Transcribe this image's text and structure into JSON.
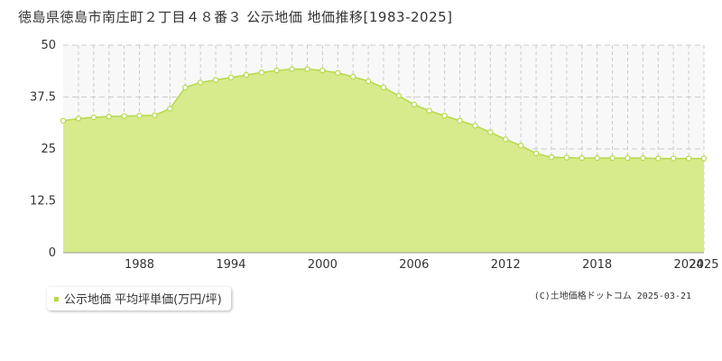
{
  "title": "徳島県徳島市南庄町２丁目４８番３ 公示地価 地価推移[1983-2025]",
  "legend": {
    "label": "公示地価 平均坪単価(万円/坪)"
  },
  "credit": "(C)土地価格ドットコム 2025-03-21",
  "colors": {
    "area": "#d7eb8c",
    "line": "#b5d94a",
    "grid": "#cccccc",
    "plot_bg": "#f8f8f8",
    "marker_fill": "#ffffff"
  },
  "chart_data": {
    "type": "area",
    "x": [
      1983,
      1984,
      1985,
      1986,
      1987,
      1988,
      1989,
      1990,
      1991,
      1992,
      1993,
      1994,
      1995,
      1996,
      1997,
      1998,
      1999,
      2000,
      2001,
      2002,
      2003,
      2004,
      2005,
      2006,
      2007,
      2008,
      2009,
      2010,
      2011,
      2012,
      2013,
      2014,
      2015,
      2016,
      2017,
      2018,
      2019,
      2020,
      2021,
      2022,
      2023,
      2024,
      2025
    ],
    "series": [
      {
        "values": [
          31.8,
          32.3,
          32.6,
          32.8,
          32.9,
          33.0,
          33.1,
          34.7,
          39.8,
          41.0,
          41.6,
          42.2,
          42.8,
          43.4,
          43.9,
          44.2,
          44.2,
          43.9,
          43.3,
          42.4,
          41.3,
          39.8,
          37.8,
          35.7,
          34.2,
          33.0,
          31.8,
          30.6,
          29.0,
          27.3,
          25.8,
          23.9,
          23.0,
          22.9,
          22.8,
          22.8,
          22.8,
          22.8,
          22.8,
          22.7,
          22.7,
          22.7,
          22.7
        ]
      }
    ],
    "xticks": [
      "1988",
      "1994",
      "2000",
      "2006",
      "2012",
      "2018",
      "2024",
      "2025"
    ],
    "yticks": [
      "0",
      "12.5",
      "25",
      "37.5",
      "50"
    ],
    "ylim": [
      0,
      50
    ],
    "xlim": [
      1983,
      2025
    ],
    "grid": true
  }
}
